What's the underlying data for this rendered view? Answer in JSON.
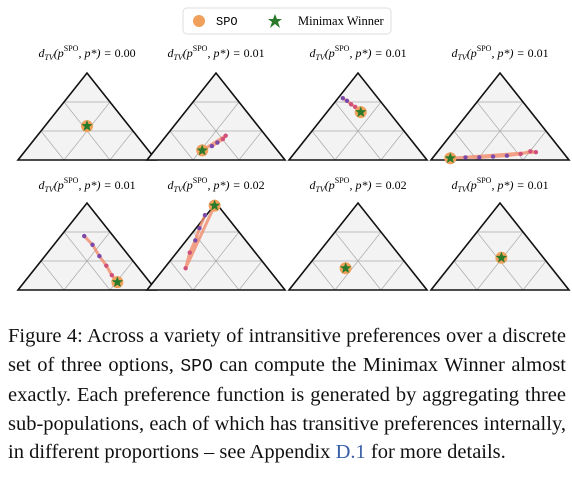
{
  "legend": {
    "spo": "SPO",
    "minimax": "Minimax Winner"
  },
  "title_parts": {
    "d": "d",
    "sub": "TV",
    "open": "(p",
    "sup": "SPO",
    "close": ", p*) = "
  },
  "panels": [
    {
      "value": 0.0,
      "value_label": "0.00",
      "star": [
        0.5,
        0.39
      ],
      "trail": []
    },
    {
      "value": 0.01,
      "value_label": "0.01",
      "star": [
        0.4,
        0.11
      ],
      "trail": [
        [
          0.47,
          0.16
        ],
        [
          0.51,
          0.2
        ],
        [
          0.55,
          0.24
        ],
        [
          0.57,
          0.28
        ]
      ]
    },
    {
      "value": 0.01,
      "value_label": "0.01",
      "star": [
        0.52,
        0.55
      ],
      "trail": [
        [
          0.39,
          0.71
        ],
        [
          0.42,
          0.68
        ],
        [
          0.45,
          0.64
        ],
        [
          0.48,
          0.61
        ]
      ]
    },
    {
      "value": 0.01,
      "value_label": "0.01",
      "star": [
        0.14,
        0.02
      ],
      "trail": [
        [
          0.25,
          0.03
        ],
        [
          0.35,
          0.03
        ],
        [
          0.45,
          0.04
        ],
        [
          0.55,
          0.05
        ],
        [
          0.65,
          0.07
        ],
        [
          0.72,
          0.1
        ],
        [
          0.76,
          0.09
        ]
      ]
    },
    {
      "value": 0.01,
      "value_label": "0.01",
      "star": [
        0.72,
        0.09
      ],
      "trail": [
        [
          0.48,
          0.62
        ],
        [
          0.54,
          0.52
        ],
        [
          0.59,
          0.39
        ],
        [
          0.64,
          0.28
        ],
        [
          0.68,
          0.17
        ]
      ]
    },
    {
      "value": 0.02,
      "value_label": "0.02",
      "star": [
        0.49,
        0.97
      ],
      "trail": [
        [
          0.42,
          0.86
        ],
        [
          0.38,
          0.71
        ],
        [
          0.35,
          0.57
        ],
        [
          0.31,
          0.43
        ],
        [
          0.28,
          0.25
        ]
      ]
    },
    {
      "value": 0.02,
      "value_label": "0.02",
      "star": [
        0.41,
        0.25
      ],
      "trail": []
    },
    {
      "value": 0.01,
      "value_label": "0.01",
      "star": [
        0.51,
        0.37
      ],
      "trail": []
    }
  ],
  "caption": {
    "text_1": "Figure 4: Across a variety of intransitive preferences over a discrete set of three options, ",
    "code": "SPO",
    "text_2": " can compute the Minimax Winner almost exactly. Each preference function is generated by aggregating three sub-populations, each of which has transitive preferences internally, in different proportions – see Appendix ",
    "link": "D.1",
    "text_3": " for more details."
  }
}
